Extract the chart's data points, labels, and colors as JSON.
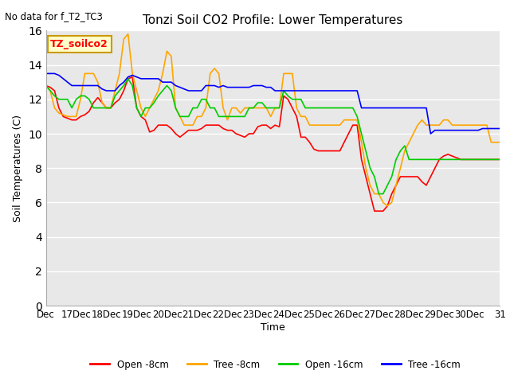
{
  "title": "Tonzi Soil CO2 Profile: Lower Temperatures",
  "subtitle": "No data for f_T2_TC3",
  "ylabel": "Soil Temperatures (C)",
  "xlabel": "Time",
  "ylim": [
    0,
    16
  ],
  "yticks": [
    0,
    2,
    4,
    6,
    8,
    10,
    12,
    14,
    16
  ],
  "xtick_labels": [
    "Dec",
    "17Dec",
    "18Dec",
    "19Dec",
    "20Dec",
    "21Dec",
    "22Dec",
    "23Dec",
    "24Dec",
    "25Dec",
    "26Dec",
    "27Dec",
    "28Dec",
    "29Dec",
    "30Dec",
    "31"
  ],
  "legend_labels": [
    "Open -8cm",
    "Tree -8cm",
    "Open -16cm",
    "Tree -16cm"
  ],
  "legend_colors": [
    "#ff0000",
    "#ffa500",
    "#00cc00",
    "#0000ff"
  ],
  "box_label": "TZ_soilco2",
  "box_color": "#ffffcc",
  "box_edge_color": "#cc9900",
  "bg_color": "#e8e8e8",
  "grid_color": "#ffffff",
  "series": {
    "open_8cm": [
      12.8,
      12.7,
      12.5,
      11.5,
      11.0,
      10.9,
      10.8,
      10.8,
      11.0,
      11.1,
      11.3,
      11.8,
      12.1,
      11.8,
      11.5,
      11.5,
      11.8,
      12.0,
      12.5,
      13.2,
      13.3,
      11.5,
      11.0,
      10.8,
      10.1,
      10.2,
      10.5,
      10.5,
      10.5,
      10.3,
      10.0,
      9.8,
      10.0,
      10.2,
      10.2,
      10.2,
      10.3,
      10.5,
      10.5,
      10.5,
      10.5,
      10.3,
      10.2,
      10.2,
      10.0,
      9.9,
      9.8,
      10.0,
      10.0,
      10.4,
      10.5,
      10.5,
      10.3,
      10.5,
      10.4,
      12.2,
      12.0,
      11.5,
      11.0,
      9.8,
      9.8,
      9.5,
      9.1,
      9.0,
      9.0,
      9.0,
      9.0,
      9.0,
      9.0,
      9.5,
      10.0,
      10.5,
      10.5,
      8.5,
      7.5,
      6.5,
      5.5,
      5.5,
      5.5,
      5.8,
      6.5,
      7.0,
      7.5,
      7.5,
      7.5,
      7.5,
      7.5,
      7.2,
      7.0,
      7.5,
      8.0,
      8.5,
      8.7,
      8.8,
      8.7,
      8.6,
      8.5,
      8.5,
      8.5,
      8.5,
      8.5,
      8.5,
      8.5,
      8.5,
      8.5,
      8.5
    ],
    "tree_8cm": [
      12.8,
      12.5,
      11.5,
      11.2,
      11.1,
      11.0,
      11.0,
      11.0,
      12.0,
      13.5,
      13.5,
      13.5,
      13.0,
      11.8,
      11.5,
      11.5,
      12.5,
      13.5,
      15.5,
      15.8,
      13.5,
      12.5,
      11.5,
      11.0,
      11.5,
      12.0,
      12.5,
      13.5,
      14.8,
      14.5,
      11.5,
      11.0,
      10.5,
      10.5,
      10.5,
      11.0,
      11.0,
      11.5,
      13.5,
      13.8,
      13.5,
      11.5,
      10.8,
      11.5,
      11.5,
      11.2,
      11.5,
      11.5,
      11.5,
      11.5,
      11.5,
      11.5,
      11.0,
      11.5,
      11.5,
      13.5,
      13.5,
      13.5,
      11.5,
      11.0,
      11.0,
      10.5,
      10.5,
      10.5,
      10.5,
      10.5,
      10.5,
      10.5,
      10.5,
      10.8,
      10.8,
      10.8,
      10.8,
      9.5,
      8.0,
      7.0,
      6.5,
      6.5,
      6.0,
      5.8,
      6.0,
      7.0,
      8.0,
      9.0,
      9.5,
      10.0,
      10.5,
      10.8,
      10.5,
      10.5,
      10.5,
      10.5,
      10.8,
      10.8,
      10.5,
      10.5,
      10.5,
      10.5,
      10.5,
      10.5,
      10.5,
      10.5,
      10.5,
      9.5,
      9.5,
      9.5
    ],
    "open_16cm": [
      12.8,
      12.5,
      12.2,
      12.0,
      12.0,
      12.0,
      11.5,
      12.0,
      12.2,
      12.2,
      12.0,
      11.5,
      11.5,
      11.5,
      11.5,
      11.5,
      12.2,
      12.5,
      12.8,
      13.2,
      12.8,
      11.5,
      11.0,
      11.5,
      11.5,
      11.8,
      12.2,
      12.5,
      12.8,
      12.5,
      11.5,
      11.0,
      11.0,
      11.0,
      11.5,
      11.5,
      12.0,
      12.0,
      11.5,
      11.5,
      11.0,
      11.0,
      11.0,
      11.0,
      11.0,
      11.0,
      11.0,
      11.5,
      11.5,
      11.8,
      11.8,
      11.5,
      11.5,
      11.5,
      11.5,
      12.5,
      12.2,
      12.0,
      12.0,
      12.0,
      11.5,
      11.5,
      11.5,
      11.5,
      11.5,
      11.5,
      11.5,
      11.5,
      11.5,
      11.5,
      11.5,
      11.5,
      11.0,
      10.0,
      9.0,
      8.0,
      7.5,
      6.5,
      6.5,
      7.0,
      7.5,
      8.5,
      9.0,
      9.3,
      8.5,
      8.5,
      8.5,
      8.5,
      8.5,
      8.5,
      8.5,
      8.5,
      8.5,
      8.5,
      8.5,
      8.5,
      8.5,
      8.5,
      8.5,
      8.5,
      8.5,
      8.5,
      8.5,
      8.5,
      8.5,
      8.5
    ],
    "tree_16cm": [
      13.5,
      13.5,
      13.5,
      13.4,
      13.2,
      13.0,
      12.8,
      12.8,
      12.8,
      12.8,
      12.8,
      12.8,
      12.8,
      12.6,
      12.5,
      12.5,
      12.5,
      12.8,
      13.0,
      13.3,
      13.4,
      13.3,
      13.2,
      13.2,
      13.2,
      13.2,
      13.2,
      13.0,
      13.0,
      13.0,
      12.8,
      12.7,
      12.6,
      12.5,
      12.5,
      12.5,
      12.5,
      12.8,
      12.8,
      12.8,
      12.7,
      12.8,
      12.7,
      12.7,
      12.7,
      12.7,
      12.7,
      12.7,
      12.8,
      12.8,
      12.8,
      12.7,
      12.7,
      12.5,
      12.5,
      12.5,
      12.5,
      12.5,
      12.5,
      12.5,
      12.5,
      12.5,
      12.5,
      12.5,
      12.5,
      12.5,
      12.5,
      12.5,
      12.5,
      12.5,
      12.5,
      12.5,
      12.5,
      11.5,
      11.5,
      11.5,
      11.5,
      11.5,
      11.5,
      11.5,
      11.5,
      11.5,
      11.5,
      11.5,
      11.5,
      11.5,
      11.5,
      11.5,
      11.5,
      10.0,
      10.2,
      10.2,
      10.2,
      10.2,
      10.2,
      10.2,
      10.2,
      10.2,
      10.2,
      10.2,
      10.2,
      10.3,
      10.3,
      10.3,
      10.3,
      10.3
    ]
  }
}
